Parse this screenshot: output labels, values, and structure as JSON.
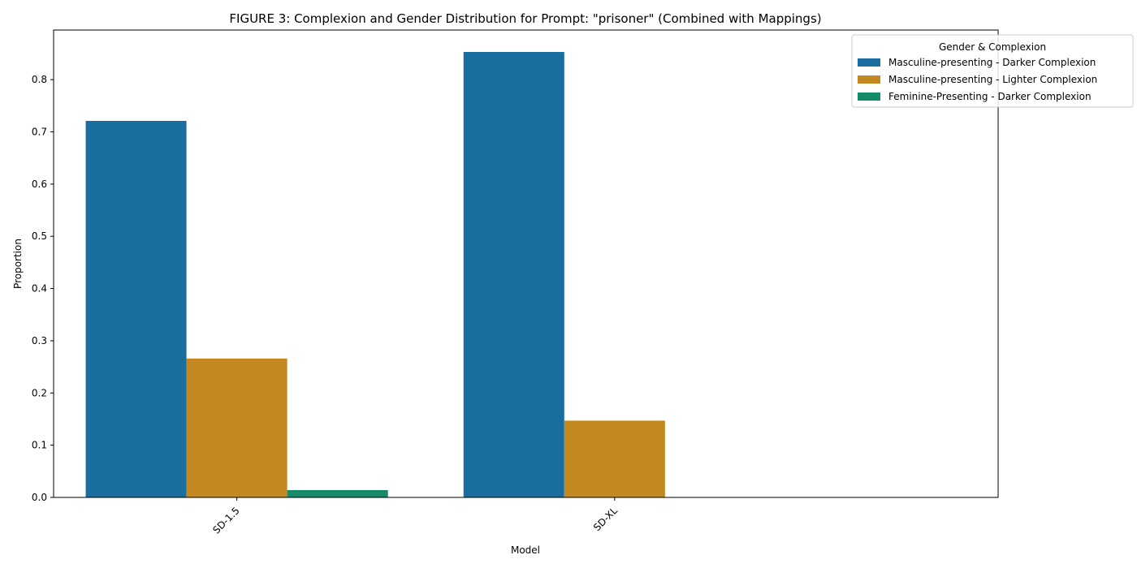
{
  "chart_data": {
    "type": "bar",
    "title": "FIGURE 3: Complexion and Gender Distribution for Prompt: \"prisoner\" (Combined with Mappings)",
    "xlabel": "Model",
    "ylabel": "Proportion",
    "categories": [
      "SD-1.5",
      "SD-XL"
    ],
    "series": [
      {
        "name": "Masculine-presenting - Darker Complexion",
        "color": "#1a6e9f",
        "values": [
          0.721,
          0.853
        ]
      },
      {
        "name": "Masculine-presenting - Lighter Complexion",
        "color": "#c38820",
        "values": [
          0.266,
          0.147
        ]
      },
      {
        "name": "Feminine-Presenting - Darker Complexion",
        "color": "#158b6a",
        "values": [
          0.014,
          0.0
        ]
      }
    ],
    "ylim": [
      0,
      0.895
    ],
    "yticks": [
      "0.0",
      "0.1",
      "0.2",
      "0.3",
      "0.4",
      "0.5",
      "0.6",
      "0.7",
      "0.8"
    ],
    "grid": false,
    "legend": {
      "title": "Gender & Complexion",
      "placement": "top-right"
    }
  }
}
